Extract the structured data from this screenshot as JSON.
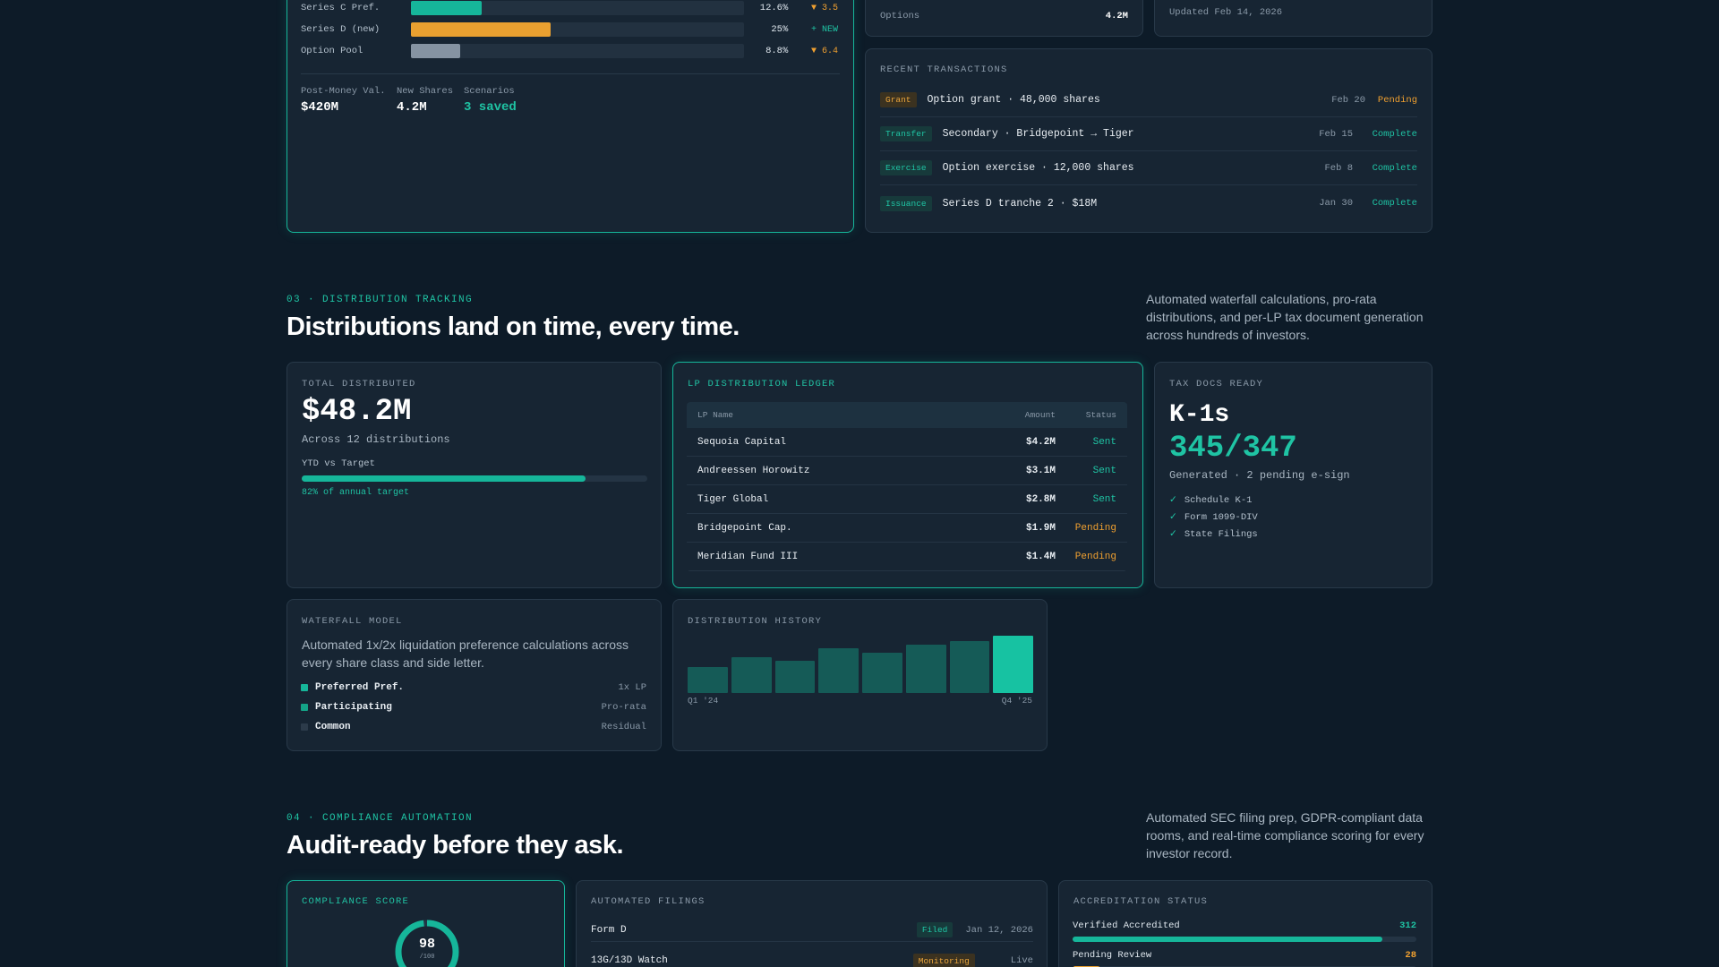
{
  "ownership": {
    "rows": [
      {
        "label": "Series C Pref.",
        "pct": "12.6%",
        "fill": 0.126,
        "delta": "▼ 3.5",
        "color": "#16b69a",
        "delta_color": "#f0a030"
      },
      {
        "label": "Series D (new)",
        "pct": "25%",
        "fill": 0.25,
        "delta": "+ NEW",
        "color": "#e9a030",
        "delta_color": "#1fc4a4"
      },
      {
        "label": "Option Pool",
        "pct": "8.8%",
        "fill": 0.088,
        "delta": "▼ 6.4",
        "color": "#8593a2",
        "delta_color": "#f0a030"
      }
    ],
    "stats": [
      {
        "label": "Post-Money Val.",
        "value": "$420M"
      },
      {
        "label": "New Shares",
        "value": "4.2M"
      },
      {
        "label": "Scenarios",
        "value": "3 saved"
      }
    ]
  },
  "options_card": {
    "label": "Options",
    "value": "4.2M"
  },
  "updated_card": {
    "text": "Updated Feb 14, 2026"
  },
  "transactions": {
    "title": "RECENT TRANSACTIONS",
    "rows": [
      {
        "tag": "Grant",
        "desc": "Option grant · 48,000 shares",
        "date": "Feb 20",
        "status": "Pending"
      },
      {
        "tag": "Transfer",
        "desc": "Secondary · Bridgepoint → Tiger",
        "date": "Feb 15",
        "status": "Complete"
      },
      {
        "tag": "Exercise",
        "desc": "Option exercise · 12,000 shares",
        "date": "Feb 8",
        "status": "Complete"
      },
      {
        "tag": "Issuance",
        "desc": "Series D tranche 2 · $18M",
        "date": "Jan 30",
        "status": "Complete"
      }
    ]
  },
  "distribution": {
    "kicker": "03 · DISTRIBUTION TRACKING",
    "title": "Distributions land on time, every time.",
    "desc": "Automated waterfall calculations, pro-rata distributions, and per-LP tax document generation across hundreds of investors.",
    "total": {
      "title": "TOTAL DISTRIBUTED",
      "value": "$48.2M",
      "sub": "Across 12 distributions",
      "ytd_label": "YTD vs Target",
      "progress": 0.82,
      "progress_note": "82% of annual target"
    },
    "ledger": {
      "title": "LP DISTRIBUTION LEDGER",
      "headers": {
        "name": "LP Name",
        "amount": "Amount",
        "status": "Status"
      },
      "rows": [
        {
          "name": "Sequoia Capital",
          "amount": "$4.2M",
          "status": "Sent"
        },
        {
          "name": "Andreessen Horowitz",
          "amount": "$3.1M",
          "status": "Sent"
        },
        {
          "name": "Tiger Global",
          "amount": "$2.8M",
          "status": "Sent"
        },
        {
          "name": "Bridgepoint Cap.",
          "amount": "$1.9M",
          "status": "Pending"
        },
        {
          "name": "Meridian Fund III",
          "amount": "$1.4M",
          "status": "Pending"
        }
      ]
    },
    "tax": {
      "title": "TAX DOCS READY",
      "heading": "K-1s",
      "count": "345/347",
      "sub": "Generated · 2 pending e-sign",
      "items": [
        "Schedule K-1",
        "Form 1099-DIV",
        "State Filings"
      ]
    },
    "waterfall": {
      "title": "WATERFALL MODEL",
      "desc": "Automated 1x/2x liquidation preference calculations across every share class and side letter.",
      "rows": [
        {
          "name": "Preferred Pref.",
          "value": "1x LP",
          "color": "#16b69a"
        },
        {
          "name": "Participating",
          "value": "Pro-rata",
          "color": "#14a387"
        },
        {
          "name": "Common",
          "value": "Residual",
          "color": "#2c3b4a"
        }
      ]
    },
    "history": {
      "title": "DISTRIBUTION HISTORY",
      "start_label": "Q1 '24",
      "end_label": "Q4 '25",
      "bars": [
        0.46,
        0.62,
        0.56,
        0.78,
        0.7,
        0.84,
        0.91,
        1.0
      ]
    }
  },
  "compliance": {
    "kicker": "04 · COMPLIANCE AUTOMATION",
    "title": "Audit-ready before they ask.",
    "desc": "Automated SEC filing prep, GDPR-compliant data rooms, and real-time compliance scoring for every investor record.",
    "score": {
      "title": "COMPLIANCE SCORE",
      "value": "98",
      "max": "/100"
    },
    "filings": {
      "title": "AUTOMATED FILINGS",
      "rows": [
        {
          "name": "Form D",
          "tag": "Filed",
          "date": "Jan 12, 2026"
        },
        {
          "name": "13G/13D Watch",
          "tag": "Monitoring",
          "date": "Live"
        }
      ]
    },
    "accreditation": {
      "title": "ACCREDITATION STATUS",
      "rows": [
        {
          "label": "Verified Accredited",
          "value": "312",
          "fill": 0.9
        },
        {
          "label": "Pending Review",
          "value": "28",
          "fill": 0.08
        }
      ]
    }
  }
}
